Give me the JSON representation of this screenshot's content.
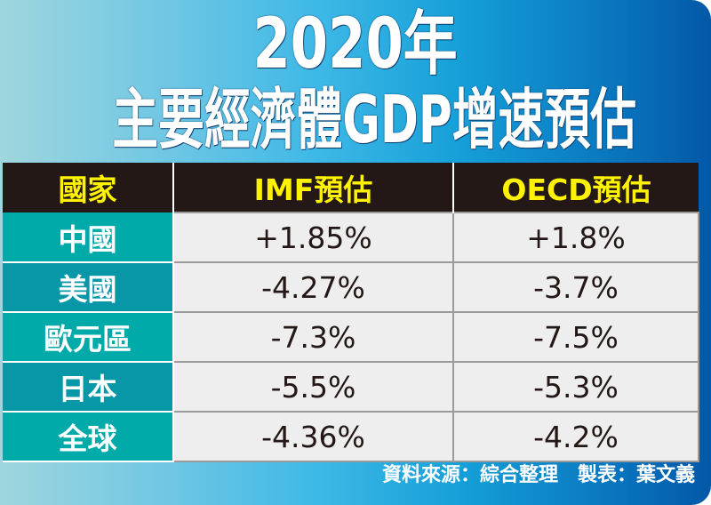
{
  "title_line1": "2020年",
  "title_line2": "主要經濟體GDP增速預估",
  "colors": {
    "header_bg": "#231815",
    "header_text": "#fff200",
    "label_teal": "#00aaa9",
    "label_teal_dark": "#0897a7",
    "cell_bg": "#eeeeee",
    "bg_gradient_start": "#9fd6de",
    "bg_gradient_end": "#0358a8"
  },
  "chart_data": {
    "type": "table",
    "columns": [
      "國家",
      "IMF預估",
      "OECD預估"
    ],
    "rows": [
      [
        "中國",
        "+1.85%",
        "+1.8%"
      ],
      [
        "美國",
        "-4.27%",
        "-3.7%"
      ],
      [
        "歐元區",
        "-7.3%",
        "-7.5%"
      ],
      [
        "日本",
        "-5.5%",
        "-5.3%"
      ],
      [
        "全球",
        "-4.36%",
        "-4.2%"
      ]
    ]
  },
  "footer": "資料來源：綜合整理　製表：葉文義"
}
